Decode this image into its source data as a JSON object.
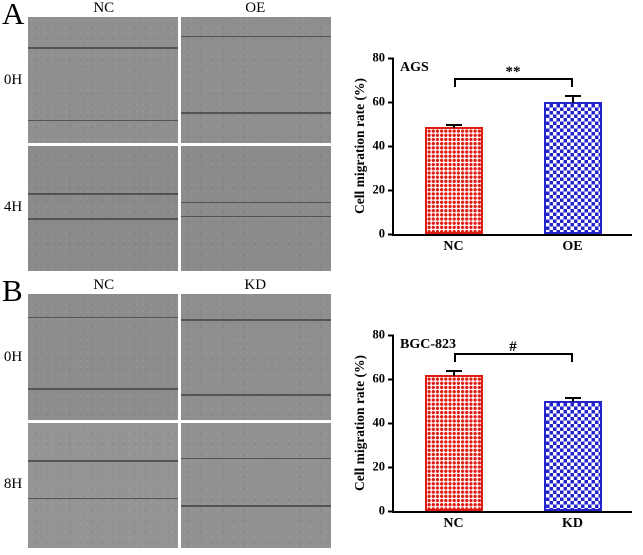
{
  "panels": [
    {
      "label": "A",
      "col_headers": [
        "NC",
        "OE"
      ],
      "row_labels": [
        "0H",
        "4H"
      ]
    },
    {
      "label": "B",
      "col_headers": [
        "NC",
        "KD"
      ],
      "row_labels": [
        "0H",
        "8H"
      ]
    }
  ],
  "chart_data": [
    {
      "type": "bar",
      "title": "AGS",
      "categories": [
        "NC",
        "OE"
      ],
      "values": [
        48.5,
        60
      ],
      "errors": [
        1.2,
        2.8
      ],
      "ylabel": "Cell migration rate (%)",
      "ylim": [
        0,
        80
      ],
      "yticks": [
        0,
        20,
        40,
        60,
        80
      ],
      "significance": "**",
      "bar_colors": [
        "#e01b12",
        "#2424cc"
      ],
      "patterns": [
        "dots",
        "checker"
      ],
      "legend": "none",
      "grid": false
    },
    {
      "type": "bar",
      "title": "BGC-823",
      "categories": [
        "NC",
        "KD"
      ],
      "values": [
        62,
        50
      ],
      "errors": [
        1.5,
        1.2
      ],
      "ylabel": "Cell migration rate (%)",
      "ylim": [
        0,
        80
      ],
      "yticks": [
        0,
        20,
        40,
        60,
        80
      ],
      "significance": "#",
      "bar_colors": [
        "#e01b12",
        "#2424cc"
      ],
      "patterns": [
        "dots",
        "checker"
      ],
      "legend": "none",
      "grid": false
    }
  ]
}
